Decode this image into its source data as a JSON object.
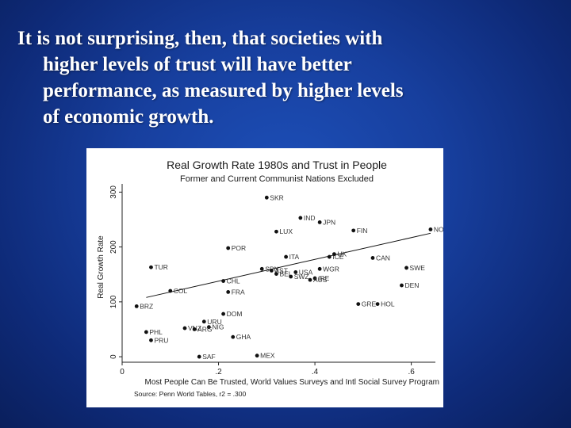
{
  "slide": {
    "lines": [
      "It is not surprising, then, that societies with",
      "higher levels of trust will have better",
      "performance, as measured by higher levels",
      "of economic growth."
    ]
  },
  "chart_data": {
    "type": "scatter",
    "title": "Real Growth Rate 1980s and Trust in People",
    "subtitle": "Former and Current Communist Nations Excluded",
    "xlabel": "Most People Can Be Trusted, World Values Surveys and Intl Social Survey Program",
    "ylabel": "Real Growth Rate",
    "source": "Source: Penn World Tables, r2 = .300",
    "xlim": [
      0,
      0.65
    ],
    "ylim": [
      -10,
      315
    ],
    "x_ticks": [
      0,
      0.2,
      0.4,
      0.6
    ],
    "x_tick_labels": [
      "0",
      ".2",
      ".4",
      ".6"
    ],
    "y_ticks": [
      0,
      100,
      200,
      300
    ],
    "y_tick_labels": [
      "0",
      "100",
      "200",
      "300"
    ],
    "fit_line": {
      "x": [
        0.05,
        0.64
      ],
      "y": [
        108,
        225
      ]
    },
    "points": [
      {
        "label": "SKR",
        "x": 0.3,
        "y": 290
      },
      {
        "label": "IND",
        "x": 0.37,
        "y": 253
      },
      {
        "label": "JPN",
        "x": 0.41,
        "y": 245
      },
      {
        "label": "LUX",
        "x": 0.32,
        "y": 228
      },
      {
        "label": "FIN",
        "x": 0.48,
        "y": 230
      },
      {
        "label": "NOR",
        "x": 0.64,
        "y": 232
      },
      {
        "label": "POR",
        "x": 0.22,
        "y": 198
      },
      {
        "label": "ITA",
        "x": 0.34,
        "y": 182
      },
      {
        "label": "ICE",
        "x": 0.43,
        "y": 182
      },
      {
        "label": "UK",
        "x": 0.44,
        "y": 187
      },
      {
        "label": "CAN",
        "x": 0.52,
        "y": 180
      },
      {
        "label": "TUR",
        "x": 0.06,
        "y": 163
      },
      {
        "label": "SPN",
        "x": 0.29,
        "y": 160
      },
      {
        "label": "AST",
        "x": 0.31,
        "y": 157
      },
      {
        "label": "BEL",
        "x": 0.32,
        "y": 151
      },
      {
        "label": "USA",
        "x": 0.36,
        "y": 154
      },
      {
        "label": "WGR",
        "x": 0.41,
        "y": 160
      },
      {
        "label": "SWE",
        "x": 0.59,
        "y": 162
      },
      {
        "label": "SWZ",
        "x": 0.35,
        "y": 146
      },
      {
        "label": "IRE",
        "x": 0.4,
        "y": 143
      },
      {
        "label": "AUS",
        "x": 0.39,
        "y": 140
      },
      {
        "label": "DEN",
        "x": 0.58,
        "y": 130
      },
      {
        "label": "CHL",
        "x": 0.21,
        "y": 138
      },
      {
        "label": "COL",
        "x": 0.1,
        "y": 120
      },
      {
        "label": "FRA",
        "x": 0.22,
        "y": 118
      },
      {
        "label": "BRZ",
        "x": 0.03,
        "y": 92
      },
      {
        "label": "GRE",
        "x": 0.49,
        "y": 96
      },
      {
        "label": "HOL",
        "x": 0.53,
        "y": 96
      },
      {
        "label": "DOM",
        "x": 0.21,
        "y": 78
      },
      {
        "label": "URU",
        "x": 0.17,
        "y": 64
      },
      {
        "label": "NIG",
        "x": 0.18,
        "y": 54
      },
      {
        "label": "VNZ",
        "x": 0.13,
        "y": 52
      },
      {
        "label": "ARG",
        "x": 0.15,
        "y": 50
      },
      {
        "label": "PHL",
        "x": 0.05,
        "y": 45
      },
      {
        "label": "PRU",
        "x": 0.06,
        "y": 30
      },
      {
        "label": "GHA",
        "x": 0.23,
        "y": 36
      },
      {
        "label": "SAF",
        "x": 0.16,
        "y": 0
      },
      {
        "label": "MEX",
        "x": 0.28,
        "y": 2
      }
    ]
  }
}
